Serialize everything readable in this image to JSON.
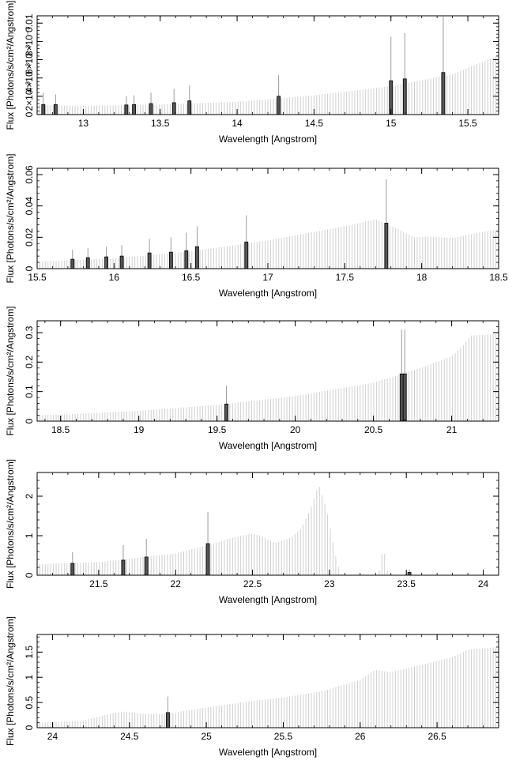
{
  "chart_data": [
    {
      "type": "bar",
      "panel": 1,
      "xlabel": "Wavelength [Angstrom]",
      "ylabel": "Flux [Photons/s/cm²/Angstrom]",
      "xlim": [
        12.7,
        15.7
      ],
      "ylim": [
        0,
        0.0108
      ],
      "xticks": [
        13,
        13.5,
        14,
        14.5,
        15,
        15.5
      ],
      "yticks": [
        0,
        0.002,
        0.004,
        0.006,
        0.008,
        0.01
      ],
      "ytick_labels": [
        "0",
        "2×10⁻³",
        "4×10⁻³",
        "6×10⁻³",
        "8×10⁻³",
        "0.01"
      ],
      "continuum": [
        [
          12.7,
          0.00105
        ],
        [
          13.0,
          0.00095
        ],
        [
          13.5,
          0.0011
        ],
        [
          14.0,
          0.0014
        ],
        [
          14.5,
          0.0021
        ],
        [
          15.0,
          0.0031
        ],
        [
          15.4,
          0.0044
        ],
        [
          15.7,
          0.0065
        ]
      ],
      "lines": [
        {
          "x": 12.74,
          "y": 0.0011,
          "err": 0.0024
        },
        {
          "x": 12.82,
          "y": 0.0011,
          "err": 0.0022
        },
        {
          "x": 13.28,
          "y": 0.00105,
          "err": 0.002
        },
        {
          "x": 13.33,
          "y": 0.0011,
          "err": 0.0021
        },
        {
          "x": 13.44,
          "y": 0.0012,
          "err": 0.0024
        },
        {
          "x": 13.59,
          "y": 0.0013,
          "err": 0.0028
        },
        {
          "x": 13.69,
          "y": 0.0015,
          "err": 0.0032
        },
        {
          "x": 14.27,
          "y": 0.002,
          "err": 0.0043
        },
        {
          "x": 15.0,
          "y": 0.0037,
          "err": 0.0085
        },
        {
          "x": 15.09,
          "y": 0.0039,
          "err": 0.0089
        },
        {
          "x": 15.34,
          "y": 0.0046,
          "err": 0.0107
        }
      ]
    },
    {
      "type": "bar",
      "panel": 2,
      "xlabel": "Wavelength [Angstrom]",
      "ylabel": "Flux [Photons/s/cm²/Angstrom]",
      "xlim": [
        15.5,
        18.5
      ],
      "ylim": [
        0,
        0.064
      ],
      "xticks": [
        15.5,
        16,
        16.5,
        17,
        17.5,
        18,
        18.5
      ],
      "yticks": [
        0,
        0.02,
        0.04,
        0.06
      ],
      "ytick_labels": [
        "0",
        "0.02",
        "0.04",
        "0.06"
      ],
      "continuum": [
        [
          15.5,
          0.0045
        ],
        [
          16.0,
          0.0065
        ],
        [
          16.5,
          0.011
        ],
        [
          17.0,
          0.018
        ],
        [
          17.5,
          0.027
        ],
        [
          17.7,
          0.0315
        ],
        [
          17.85,
          0.025
        ],
        [
          17.95,
          0.02
        ],
        [
          18.05,
          0.0205
        ],
        [
          18.2,
          0.0195
        ],
        [
          18.4,
          0.0235
        ],
        [
          18.5,
          0.025
        ]
      ],
      "lines": [
        {
          "x": 15.73,
          "y": 0.006,
          "err": 0.012
        },
        {
          "x": 15.83,
          "y": 0.007,
          "err": 0.013
        },
        {
          "x": 15.95,
          "y": 0.0075,
          "err": 0.014
        },
        {
          "x": 16.05,
          "y": 0.008,
          "err": 0.015
        },
        {
          "x": 16.23,
          "y": 0.01,
          "err": 0.019
        },
        {
          "x": 16.37,
          "y": 0.0105,
          "err": 0.02
        },
        {
          "x": 16.47,
          "y": 0.0115,
          "err": 0.023
        },
        {
          "x": 16.54,
          "y": 0.014,
          "err": 0.027
        },
        {
          "x": 16.86,
          "y": 0.017,
          "err": 0.034
        },
        {
          "x": 17.77,
          "y": 0.029,
          "err": 0.057
        }
      ]
    },
    {
      "type": "bar",
      "panel": 3,
      "xlabel": "Wavelength [Angstrom]",
      "ylabel": "Flux [Photons/s/cm²/Angstrom]",
      "xlim": [
        18.35,
        21.3
      ],
      "ylim": [
        0,
        0.34
      ],
      "xticks": [
        18.5,
        19,
        19.5,
        20,
        20.5,
        21
      ],
      "yticks": [
        0,
        0.1,
        0.2,
        0.3
      ],
      "ytick_labels": [
        "0",
        "0.1",
        "0.2",
        "0.3"
      ],
      "continuum": [
        [
          18.35,
          0.02
        ],
        [
          18.5,
          0.022
        ],
        [
          19.0,
          0.035
        ],
        [
          19.5,
          0.055
        ],
        [
          20.0,
          0.085
        ],
        [
          20.5,
          0.13
        ],
        [
          20.8,
          0.18
        ],
        [
          21.0,
          0.22
        ],
        [
          21.08,
          0.26
        ],
        [
          21.12,
          0.29
        ],
        [
          21.3,
          0.295
        ]
      ],
      "lines": [
        {
          "x": 19.56,
          "y": 0.058,
          "err": 0.12
        },
        {
          "x": 20.68,
          "y": 0.16,
          "err": 0.31
        },
        {
          "x": 20.7,
          "y": 0.16,
          "err": 0.31
        }
      ]
    },
    {
      "type": "bar",
      "panel": 4,
      "xlabel": "Wavelength [Angstrom]",
      "ylabel": "Flux [Photons/s/cm²/Angstrom]",
      "xlim": [
        21.1,
        24.1
      ],
      "ylim": [
        0,
        2.6
      ],
      "xticks": [
        21.5,
        22,
        22.5,
        23,
        23.5,
        24
      ],
      "yticks": [
        0,
        1,
        2
      ],
      "ytick_labels": [
        "0",
        "1",
        "2"
      ],
      "continuum": [
        [
          21.1,
          0.28
        ],
        [
          21.5,
          0.33
        ],
        [
          22.0,
          0.55
        ],
        [
          22.2,
          0.75
        ],
        [
          22.4,
          0.98
        ],
        [
          22.5,
          1.05
        ],
        [
          22.55,
          1.0
        ],
        [
          22.65,
          0.82
        ],
        [
          22.75,
          0.95
        ],
        [
          22.82,
          1.2
        ],
        [
          22.88,
          1.7
        ],
        [
          22.93,
          2.3
        ],
        [
          22.98,
          1.7
        ],
        [
          23.05,
          0.3
        ],
        [
          23.08,
          0.0
        ]
      ],
      "peaks": [
        [
          23.35,
          0.65
        ]
      ],
      "lines": [
        {
          "x": 21.33,
          "y": 0.3,
          "err": 0.58
        },
        {
          "x": 21.66,
          "y": 0.38,
          "err": 0.76
        },
        {
          "x": 21.81,
          "y": 0.46,
          "err": 0.92
        },
        {
          "x": 22.21,
          "y": 0.8,
          "err": 1.6
        },
        {
          "x": 23.52,
          "y": 0.07,
          "err": 0.15
        }
      ]
    },
    {
      "type": "bar",
      "panel": 5,
      "xlabel": "Wavelength [Angstrom]",
      "ylabel": "Flux [Photons/s/cm²/Angstrom]",
      "xlim": [
        23.9,
        26.9
      ],
      "ylim": [
        0,
        1.85
      ],
      "xticks": [
        24,
        24.5,
        25,
        25.5,
        26,
        26.5
      ],
      "yticks": [
        0,
        0.5,
        1,
        1.5
      ],
      "ytick_labels": [
        "0",
        "0.5",
        "1",
        "1.5"
      ],
      "continuum": [
        [
          23.9,
          0.1
        ],
        [
          24.2,
          0.14
        ],
        [
          24.38,
          0.28
        ],
        [
          24.45,
          0.32
        ],
        [
          24.6,
          0.27
        ],
        [
          24.75,
          0.28
        ],
        [
          25.0,
          0.4
        ],
        [
          25.3,
          0.53
        ],
        [
          25.5,
          0.6
        ],
        [
          25.75,
          0.72
        ],
        [
          26.0,
          0.95
        ],
        [
          26.1,
          1.15
        ],
        [
          26.2,
          1.1
        ],
        [
          26.4,
          1.25
        ],
        [
          26.6,
          1.4
        ],
        [
          26.7,
          1.55
        ],
        [
          26.9,
          1.6
        ]
      ],
      "lines": [
        {
          "x": 24.75,
          "y": 0.3,
          "err": 0.62
        }
      ]
    }
  ]
}
